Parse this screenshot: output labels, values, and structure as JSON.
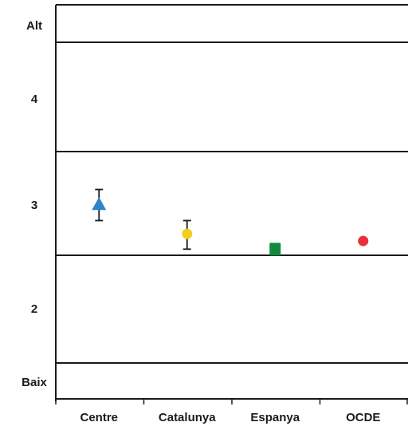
{
  "chart_data": {
    "type": "scatter",
    "title": "",
    "xlabel": "",
    "ylabel": "",
    "categories": [
      "Centre",
      "Catalunya",
      "Espanya",
      "OCDE"
    ],
    "y_levels": [
      "Alt",
      "4",
      "3",
      "2",
      "Baix"
    ],
    "band_boundaries": [
      1.5,
      2.5,
      3.5,
      4.5
    ],
    "ylim": [
      1.0,
      5.1
    ],
    "grid": false,
    "legend": "none",
    "points": [
      {
        "category": "Centre",
        "value": 3.0,
        "err_low": 2.84,
        "err_high": 3.14,
        "marker": "triangle",
        "color": "#2e86c9"
      },
      {
        "category": "Catalunya",
        "value": 2.71,
        "err_low": 2.56,
        "err_high": 2.84,
        "marker": "circle",
        "color": "#f2cf1d"
      },
      {
        "category": "Espanya",
        "value": 2.56,
        "marker": "square",
        "color": "#128a3e"
      },
      {
        "category": "OCDE",
        "value": 2.64,
        "marker": "circle",
        "color": "#e8303a"
      }
    ]
  }
}
